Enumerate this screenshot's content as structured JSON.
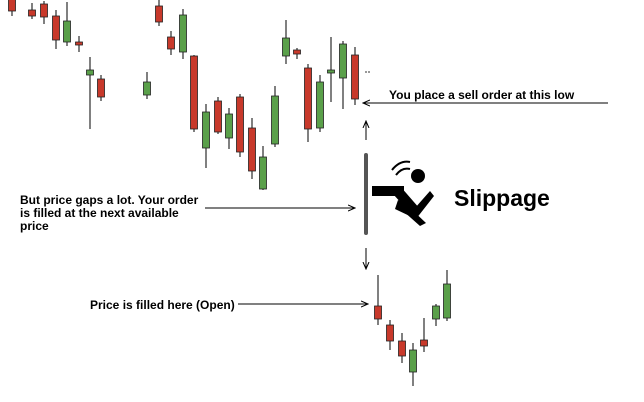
{
  "chart_data": {
    "type": "candlestick",
    "up_color": "#5aa04a",
    "down_color": "#c8392b",
    "wick_color": "#000000",
    "candles": [
      {
        "dir": "down",
        "open": 405,
        "close": 393,
        "high": 413,
        "low": 388
      },
      {
        "dir": "down",
        "open": 394,
        "close": 388,
        "high": 401,
        "low": 385
      },
      {
        "dir": "down",
        "open": 400,
        "close": 387,
        "high": 403,
        "low": 380
      },
      {
        "dir": "down",
        "open": 388,
        "close": 364,
        "high": 394,
        "low": 355
      },
      {
        "dir": "up",
        "open": 362,
        "close": 383,
        "high": 402,
        "low": 358
      },
      {
        "dir": "down",
        "open": 362,
        "close": 359,
        "high": 368,
        "low": 352
      },
      {
        "dir": "up",
        "open": 329,
        "close": 334,
        "high": 347,
        "low": 275
      },
      {
        "dir": "down",
        "open": 325,
        "close": 307,
        "high": 329,
        "low": 303
      },
      {
        "dir": "up",
        "open": 309,
        "close": 322,
        "high": 332,
        "low": 305
      },
      {
        "dir": "down",
        "open": 398,
        "close": 382,
        "high": 408,
        "low": 378
      },
      {
        "dir": "down",
        "open": 367,
        "close": 355,
        "high": 373,
        "low": 349
      },
      {
        "dir": "up",
        "open": 352,
        "close": 389,
        "high": 395,
        "low": 345
      },
      {
        "dir": "down",
        "open": 348,
        "close": 275,
        "high": 349,
        "low": 272
      },
      {
        "dir": "up",
        "open": 256,
        "close": 292,
        "high": 300,
        "low": 236
      },
      {
        "dir": "down",
        "open": 303,
        "close": 272,
        "high": 307,
        "low": 270
      },
      {
        "dir": "up",
        "open": 266,
        "close": 290,
        "high": 296,
        "low": 255
      },
      {
        "dir": "down",
        "open": 307,
        "close": 252,
        "high": 310,
        "low": 247
      },
      {
        "dir": "down",
        "open": 276,
        "close": 233,
        "high": 286,
        "low": 225
      },
      {
        "dir": "up",
        "open": 215,
        "close": 247,
        "high": 258,
        "low": 214
      },
      {
        "dir": "up",
        "open": 260,
        "close": 308,
        "high": 318,
        "low": 257
      },
      {
        "dir": "up",
        "open": 348,
        "close": 366,
        "high": 384,
        "low": 340
      },
      {
        "dir": "down",
        "open": 354,
        "close": 350,
        "high": 356,
        "low": 345
      },
      {
        "dir": "down",
        "open": 336,
        "close": 275,
        "high": 340,
        "low": 262
      },
      {
        "dir": "up",
        "open": 276,
        "close": 322,
        "high": 329,
        "low": 272
      },
      {
        "dir": "up",
        "open": 331,
        "close": 334,
        "high": 367,
        "low": 302
      },
      {
        "dir": "up",
        "open": 326,
        "close": 360,
        "high": 363,
        "low": 295
      },
      {
        "dir": "down",
        "open": 349,
        "close": 305,
        "high": 357,
        "low": 299
      },
      {
        "dir": "down",
        "open": 98,
        "close": 85,
        "high": 129,
        "low": 79
      },
      {
        "dir": "down",
        "open": 79,
        "close": 63,
        "high": 84,
        "low": 54
      },
      {
        "dir": "down",
        "open": 63,
        "close": 48,
        "high": 71,
        "low": 41
      },
      {
        "dir": "up",
        "open": 32,
        "close": 54,
        "high": 61,
        "low": 18
      },
      {
        "dir": "down",
        "open": 64,
        "close": 58,
        "high": 86,
        "low": 52
      },
      {
        "dir": "up",
        "open": 85,
        "close": 98,
        "high": 100,
        "low": 78
      },
      {
        "dir": "up",
        "open": 86,
        "close": 120,
        "high": 134,
        "low": 83
      }
    ]
  },
  "annotations": {
    "sell": "You place a sell order at this low",
    "gap": "But price gaps a lot. Your order\nis filled at the next available\nprice",
    "fill": "Price is filled here (Open)",
    "slippage": "Slippage"
  },
  "icons": {
    "falling_person": "falling-person-icon"
  },
  "colors": {
    "gap_bar": "#555555",
    "line": "#000000"
  }
}
